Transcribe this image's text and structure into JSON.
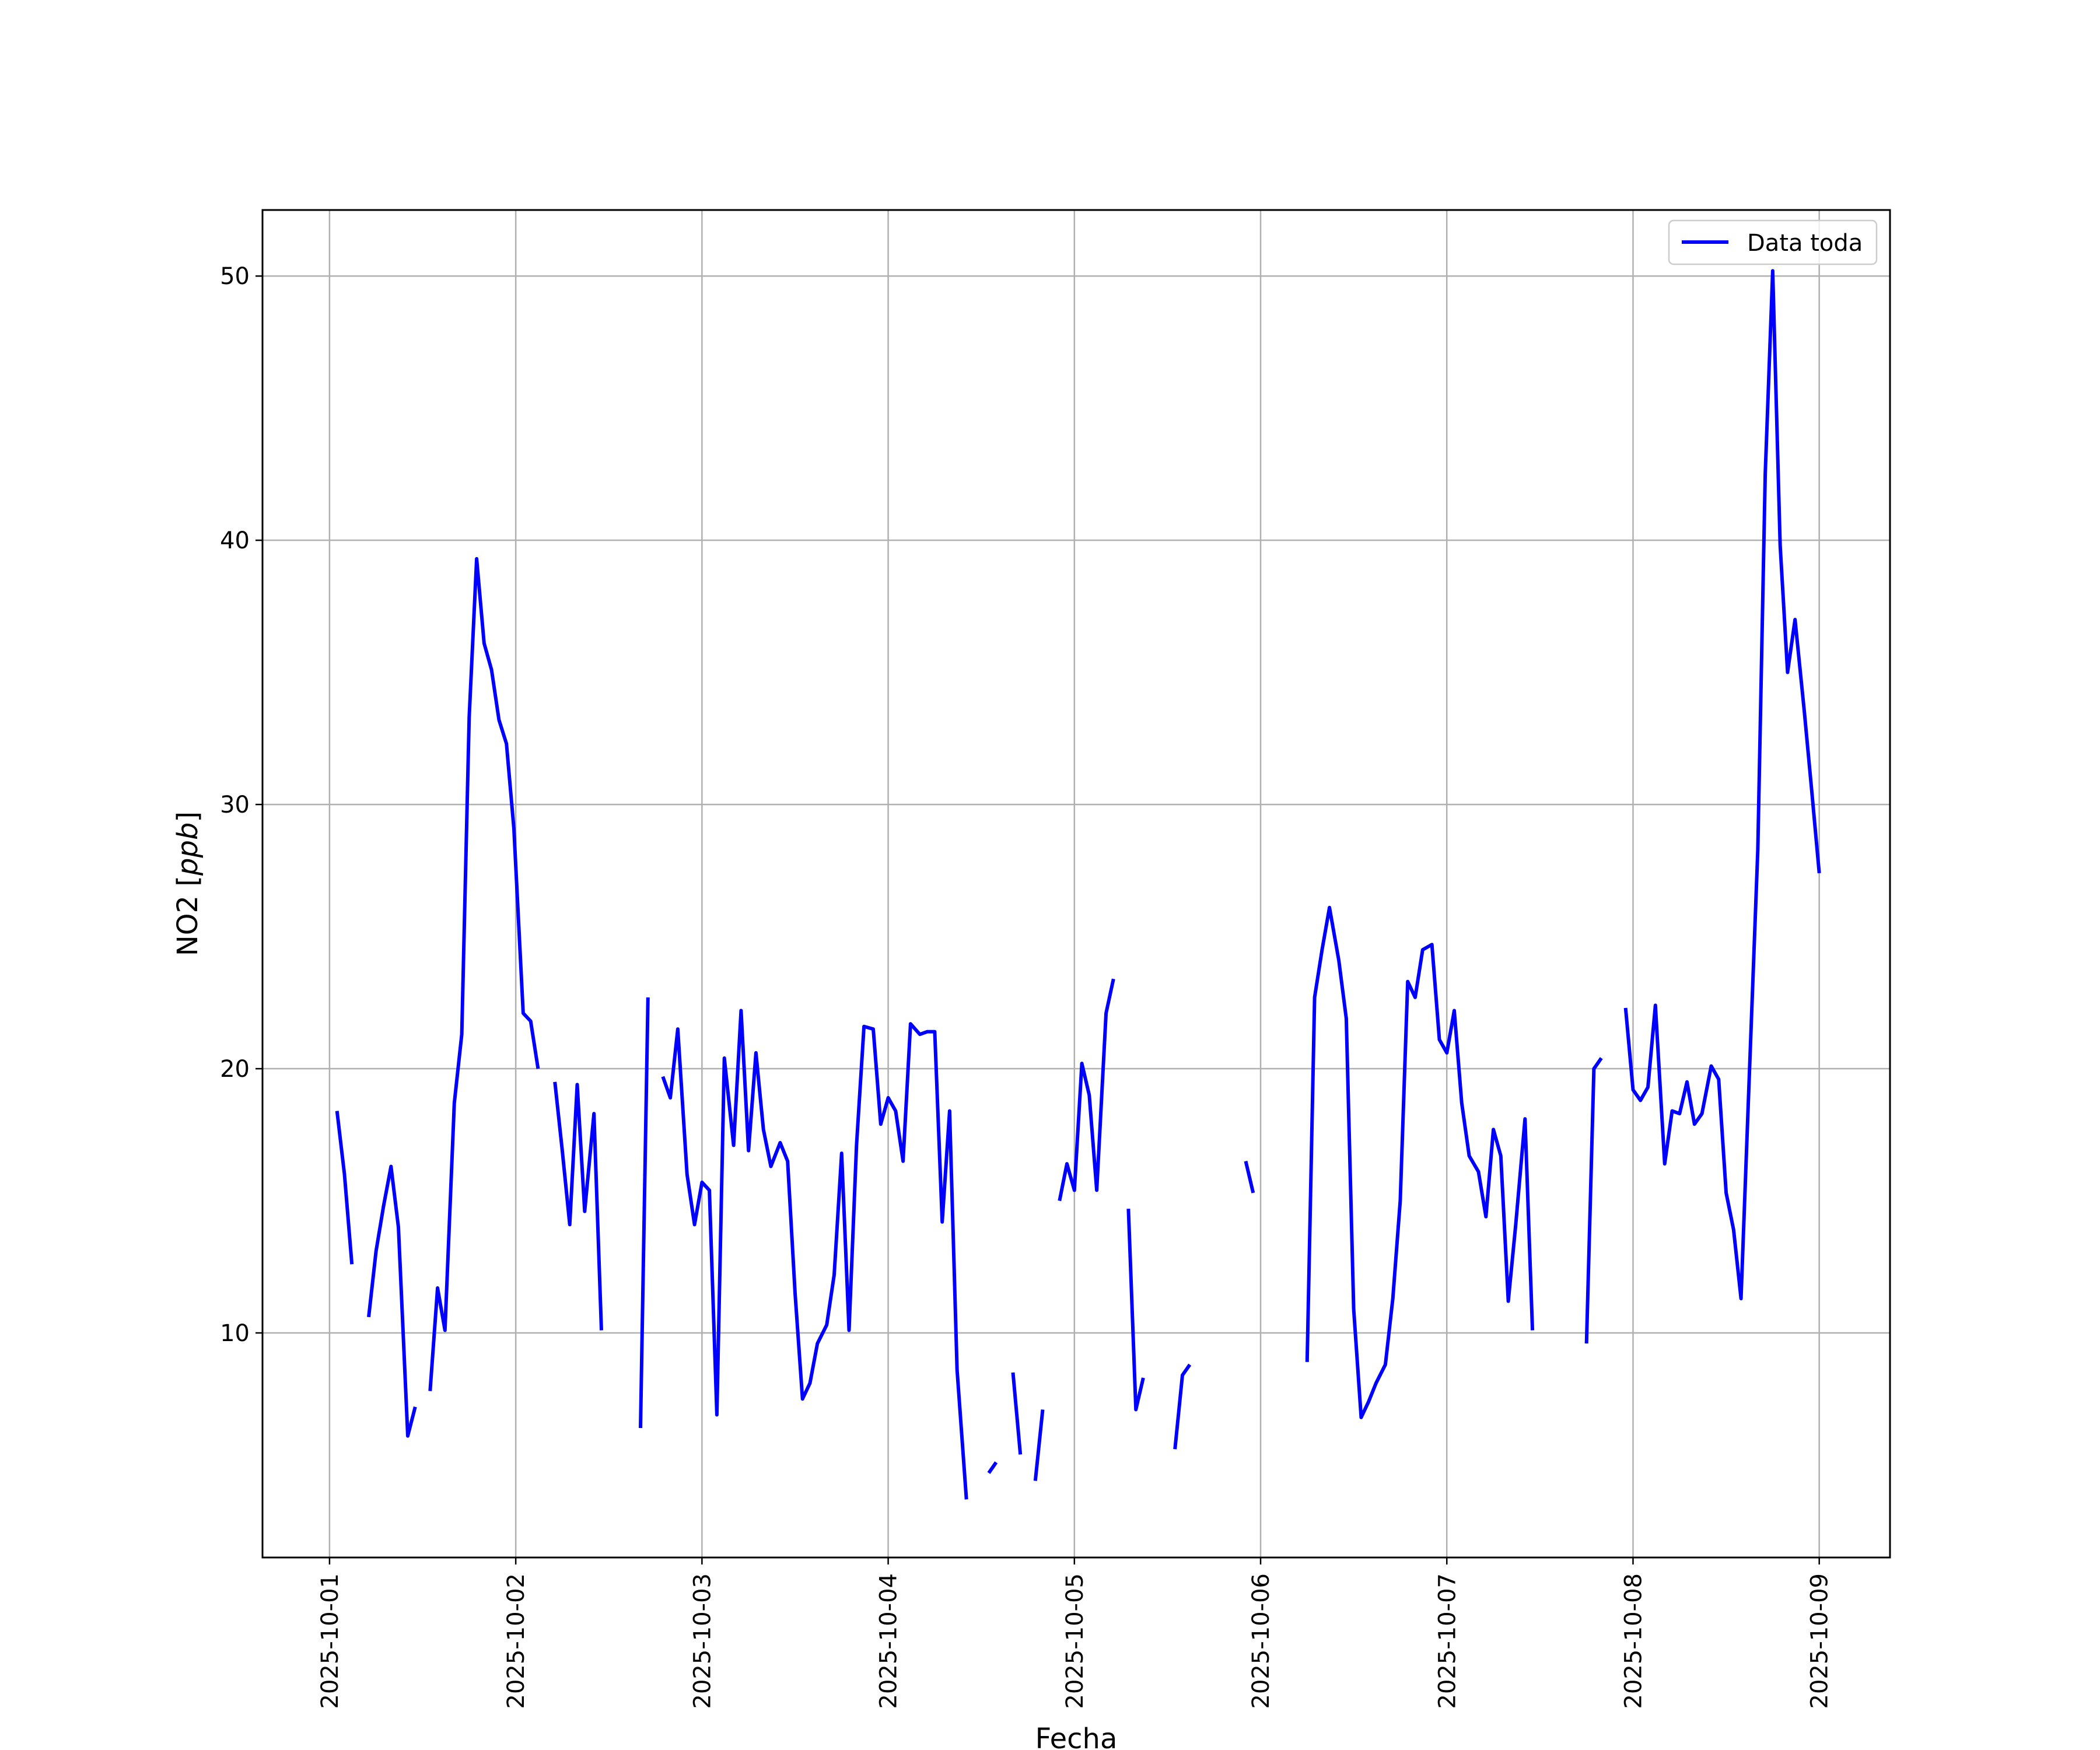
{
  "chart_data": {
    "type": "line",
    "title": "",
    "xlabel": "Fecha",
    "ylabel": "NO2 [ppb]",
    "ylabel_parts": {
      "plain": "NO2 [",
      "italic": "ppb",
      "close": "]"
    },
    "x_ticks": [
      "2025-10-01",
      "2025-10-02",
      "2025-10-03",
      "2025-10-04",
      "2025-10-05",
      "2025-10-06",
      "2025-10-07",
      "2025-10-08",
      "2025-10-09"
    ],
    "y_ticks": [
      "10",
      "20",
      "30",
      "40",
      "50"
    ],
    "xlim_days": [
      -0.36,
      8.38
    ],
    "ylim": [
      1.5,
      52.5
    ],
    "grid": true,
    "legend_position": "top-right",
    "series": [
      {
        "name": "Data toda",
        "color": "#0000ff",
        "segments": [
          [
            [
              0.04,
              18.4
            ],
            [
              0.08,
              16
            ],
            [
              0.12,
              12.6
            ]
          ],
          [
            [
              0.21,
              10.6
            ],
            [
              0.25,
              13.1
            ],
            [
              0.29,
              14.8
            ],
            [
              0.33,
              16.3
            ],
            [
              0.37,
              14
            ],
            [
              0.42,
              6.1
            ],
            [
              0.46,
              7.2
            ]
          ],
          [
            [
              0.54,
              7.8
            ],
            [
              0.58,
              11.7
            ],
            [
              0.62,
              10.1
            ],
            [
              0.67,
              18.7
            ],
            [
              0.71,
              21.3
            ],
            [
              0.75,
              33.3
            ],
            [
              0.79,
              39.3
            ],
            [
              0.83,
              36.1
            ],
            [
              0.87,
              35.1
            ],
            [
              0.91,
              33.2
            ],
            [
              0.95,
              32.3
            ],
            [
              0.99,
              29.1
            ],
            [
              1.04,
              22.1
            ],
            [
              1.08,
              21.8
            ],
            [
              1.12,
              20
            ]
          ],
          [
            [
              1.21,
              19.5
            ],
            [
              1.25,
              16.9
            ],
            [
              1.29,
              14.1
            ],
            [
              1.33,
              19.4
            ],
            [
              1.37,
              14.6
            ],
            [
              1.42,
              18.3
            ],
            [
              1.46,
              10.1
            ]
          ],
          [
            [
              1.67,
              6.4
            ],
            [
              1.71,
              22.7
            ]
          ],
          [
            [
              1.79,
              19.7
            ],
            [
              1.83,
              18.9
            ],
            [
              1.87,
              21.5
            ],
            [
              1.92,
              16
            ],
            [
              1.96,
              14.1
            ],
            [
              2,
              15.7
            ],
            [
              2.04,
              15.4
            ],
            [
              2.08,
              6.9
            ],
            [
              2.12,
              20.4
            ],
            [
              2.17,
              17.1
            ],
            [
              2.21,
              22.2
            ],
            [
              2.25,
              16.9
            ],
            [
              2.29,
              20.6
            ],
            [
              2.33,
              17.7
            ],
            [
              2.37,
              16.3
            ],
            [
              2.42,
              17.2
            ],
            [
              2.46,
              16.5
            ],
            [
              2.5,
              11.5
            ],
            [
              2.54,
              7.5
            ],
            [
              2.58,
              8.1
            ],
            [
              2.62,
              9.6
            ],
            [
              2.67,
              10.3
            ],
            [
              2.71,
              12.2
            ],
            [
              2.75,
              16.8
            ],
            [
              2.79,
              10.1
            ],
            [
              2.83,
              17.1
            ],
            [
              2.87,
              21.6
            ],
            [
              2.92,
              21.5
            ],
            [
              2.96,
              17.9
            ],
            [
              3,
              18.9
            ],
            [
              3.04,
              18.4
            ],
            [
              3.08,
              16.5
            ],
            [
              3.12,
              21.7
            ],
            [
              3.17,
              21.3
            ],
            [
              3.21,
              21.4
            ],
            [
              3.25,
              21.4
            ],
            [
              3.29,
              14.2
            ],
            [
              3.33,
              18.4
            ],
            [
              3.37,
              8.6
            ],
            [
              3.42,
              3.7
            ]
          ],
          [
            [
              3.54,
              4.7
            ],
            [
              3.58,
              5.1
            ]
          ],
          [
            [
              3.67,
              8.5
            ],
            [
              3.71,
              5.4
            ]
          ],
          [
            [
              3.79,
              4.4
            ],
            [
              3.83,
              7.1
            ]
          ],
          [
            [
              3.92,
              15
            ],
            [
              3.96,
              16.4
            ],
            [
              4,
              15.4
            ],
            [
              4.04,
              20.2
            ],
            [
              4.08,
              19
            ],
            [
              4.12,
              15.4
            ],
            [
              4.17,
              22.1
            ],
            [
              4.21,
              23.4
            ]
          ],
          [
            [
              4.29,
              14.7
            ],
            [
              4.33,
              7.1
            ],
            [
              4.37,
              8.3
            ]
          ],
          [
            [
              4.54,
              5.6
            ],
            [
              4.58,
              8.4
            ],
            [
              4.62,
              8.8
            ]
          ],
          [
            [
              4.92,
              16.5
            ],
            [
              4.96,
              15.3
            ]
          ],
          [
            [
              5.25,
              8.9
            ],
            [
              5.29,
              22.7
            ],
            [
              5.33,
              24.5
            ],
            [
              5.37,
              26.1
            ],
            [
              5.42,
              24.1
            ],
            [
              5.46,
              21.9
            ],
            [
              5.5,
              10.9
            ],
            [
              5.54,
              6.8
            ],
            [
              5.58,
              7.4
            ],
            [
              5.62,
              8.1
            ],
            [
              5.67,
              8.8
            ],
            [
              5.71,
              11.3
            ],
            [
              5.75,
              15
            ],
            [
              5.79,
              23.3
            ],
            [
              5.83,
              22.7
            ],
            [
              5.87,
              24.5
            ],
            [
              5.92,
              24.7
            ],
            [
              5.96,
              21.1
            ],
            [
              6,
              20.6
            ],
            [
              6.04,
              22.2
            ],
            [
              6.08,
              18.7
            ],
            [
              6.12,
              16.7
            ],
            [
              6.17,
              16.1
            ],
            [
              6.21,
              14.4
            ],
            [
              6.25,
              17.7
            ],
            [
              6.29,
              16.7
            ],
            [
              6.33,
              11.2
            ],
            [
              6.37,
              14.1
            ],
            [
              6.42,
              18.1
            ],
            [
              6.46,
              10.1
            ]
          ],
          [
            [
              6.75,
              9.6
            ],
            [
              6.79,
              20
            ],
            [
              6.83,
              20.4
            ]
          ],
          [
            [
              6.96,
              22.3
            ],
            [
              7,
              19.2
            ],
            [
              7.04,
              18.8
            ],
            [
              7.08,
              19.3
            ],
            [
              7.12,
              22.4
            ],
            [
              7.17,
              16.4
            ],
            [
              7.21,
              18.4
            ],
            [
              7.25,
              18.3
            ],
            [
              7.29,
              19.5
            ],
            [
              7.33,
              17.9
            ],
            [
              7.37,
              18.3
            ],
            [
              7.42,
              20.1
            ],
            [
              7.46,
              19.6
            ],
            [
              7.5,
              15.3
            ],
            [
              7.54,
              13.9
            ],
            [
              7.58,
              11.3
            ],
            [
              7.62,
              18.9
            ],
            [
              7.67,
              28.3
            ],
            [
              7.71,
              42.5
            ],
            [
              7.75,
              50.2
            ],
            [
              7.79,
              39.8
            ],
            [
              7.83,
              35
            ],
            [
              7.87,
              37
            ],
            [
              7.92,
              33.5
            ],
            [
              7.96,
              30.5
            ],
            [
              8,
              27.4
            ]
          ]
        ]
      }
    ]
  }
}
